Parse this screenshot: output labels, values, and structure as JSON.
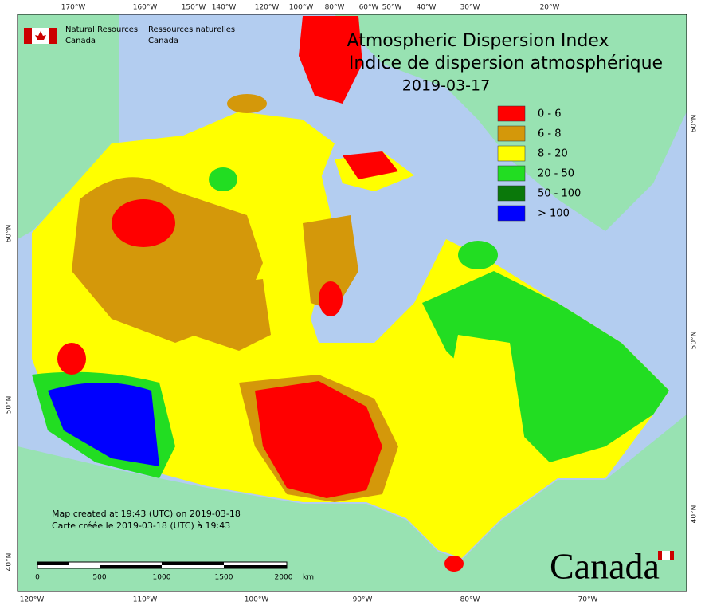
{
  "agency": {
    "en": [
      "Natural Resources",
      "Canada"
    ],
    "fr": [
      "Ressources naturelles",
      "Canada"
    ]
  },
  "title": {
    "line1": "Atmospheric Dispersion Index",
    "line2": "Indice de dispersion atmosphérique",
    "date": "2019-03-17"
  },
  "legend": [
    {
      "label": "0 - 6",
      "color": "#ff0000"
    },
    {
      "label": "6 - 8",
      "color": "#d4980a"
    },
    {
      "label": "8 - 20",
      "color": "#ffff00"
    },
    {
      "label": "20 - 50",
      "color": "#22dd22"
    },
    {
      "label": "50 - 100",
      "color": "#0a780a"
    },
    {
      "label": "> 100",
      "color": "#0000ff"
    }
  ],
  "graticule": {
    "top": [
      "170°W",
      "160°W",
      "150°W",
      "140°W",
      "120°W",
      "100°W",
      "80°W",
      "60°W",
      "50°W",
      "40°W",
      "30°W",
      "20°W"
    ],
    "bottom": [
      "120°W",
      "110°W",
      "100°W",
      "90°W",
      "80°W",
      "70°W"
    ],
    "left": [
      "60°N",
      "50°N",
      "40°N"
    ],
    "right": [
      "60°N",
      "50°N",
      "40°N"
    ]
  },
  "credit": [
    "Map created at 19:43 (UTC) on 2019-03-18",
    "Carte créée le 2019-03-18 (UTC) à 19:43"
  ],
  "scale": {
    "labels": [
      "0",
      "500",
      "1000",
      "1500",
      "2000"
    ],
    "unit": "km"
  },
  "wordmark": "Canada"
}
